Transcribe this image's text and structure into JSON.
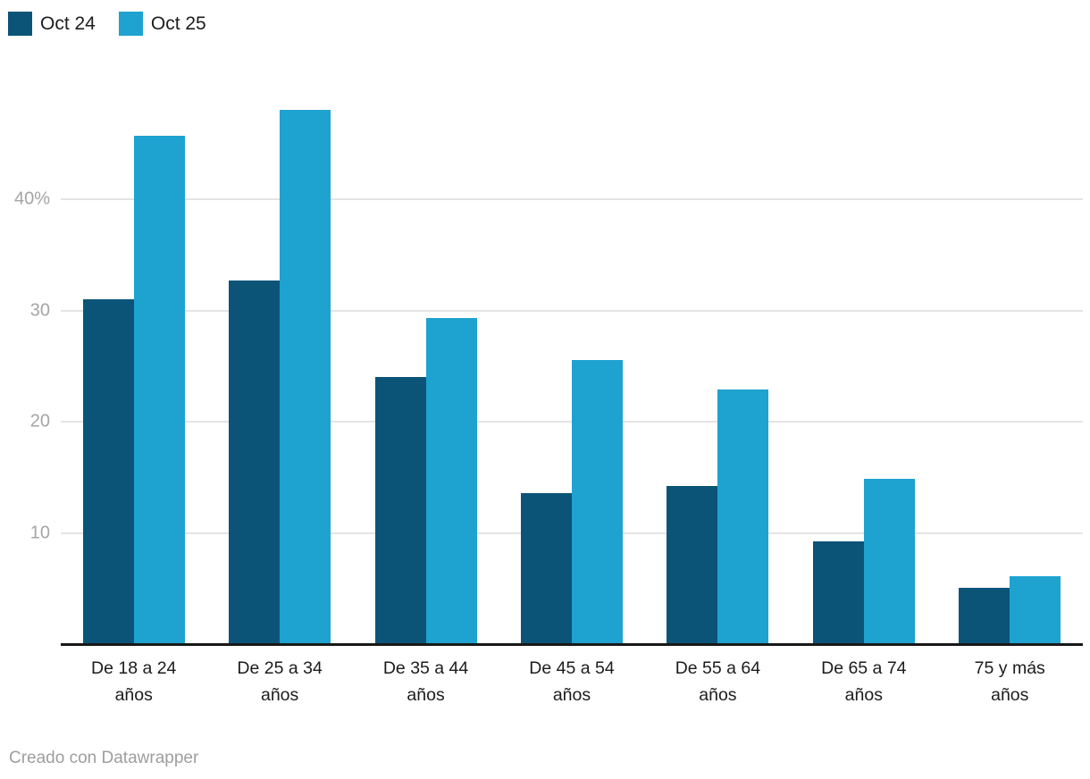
{
  "chart_data": {
    "type": "bar",
    "categories": [
      "De 18 a 24\naños",
      "De 25 a 34\naños",
      "De 35 a 44\naños",
      "De 45 a 54\naños",
      "De 55 a 64\naños",
      "De 65 a 74\naños",
      "75 y más\naños"
    ],
    "series": [
      {
        "name": "Oct 24",
        "color": "#0b5478",
        "values": [
          31.0,
          32.7,
          24.0,
          13.6,
          14.3,
          9.3,
          5.1
        ]
      },
      {
        "name": "Oct 25",
        "color": "#1ea2cf",
        "values": [
          45.7,
          48.0,
          29.3,
          25.6,
          22.9,
          14.9,
          6.2
        ]
      }
    ],
    "ylim": [
      0,
      50
    ],
    "yticks": [
      {
        "value": 10,
        "label": "10"
      },
      {
        "value": 20,
        "label": "20"
      },
      {
        "value": 30,
        "label": "30"
      },
      {
        "value": 40,
        "label": "40%"
      }
    ],
    "grid": "horizontal",
    "legend_position": "top-left",
    "attribution": "Creado con Datawrapper"
  },
  "colors": {
    "gridline": "#e4e4e4",
    "axis_line": "#181818",
    "ytick_label": "#a5a5a5",
    "category_label": "#1c1c1c",
    "footer_text": "#9e9e9e",
    "background": "#ffffff"
  }
}
